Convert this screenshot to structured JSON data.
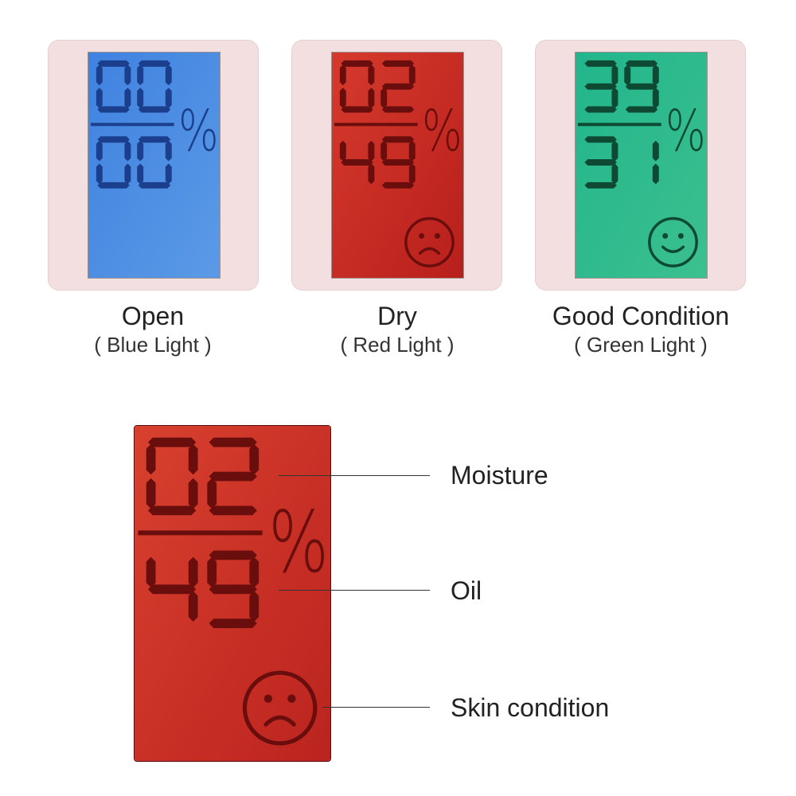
{
  "cards": [
    {
      "title": "Open",
      "subtitle": "( Blue Light )",
      "top": "00",
      "bottom": "00",
      "unit": "%",
      "face": "none",
      "bg_from": "#3f82e0",
      "bg_to": "#5b9ae6",
      "seg": "#1b3f8c"
    },
    {
      "title": "Dry",
      "subtitle": "( Red Light )",
      "top": "02",
      "bottom": "49",
      "unit": "%",
      "face": "sad",
      "bg_from": "#d63a2c",
      "bg_to": "#b81f1c",
      "seg": "#6a0d0d"
    },
    {
      "title": "Good Condition",
      "subtitle": "( Green Light )",
      "top": "39",
      "bottom": "31",
      "unit": "%",
      "face": "happy",
      "bg_from": "#22b58c",
      "bg_to": "#3cc08f",
      "seg": "#0e4a33"
    }
  ],
  "detail": {
    "top": "02",
    "bottom": "49",
    "unit": "%",
    "face": "sad",
    "bg_from": "#d8402e",
    "bg_to": "#bb231f",
    "seg": "#6a0d0d",
    "labels": {
      "moisture": "Moisture",
      "oil": "Oil",
      "skin": "Skin condition"
    }
  }
}
